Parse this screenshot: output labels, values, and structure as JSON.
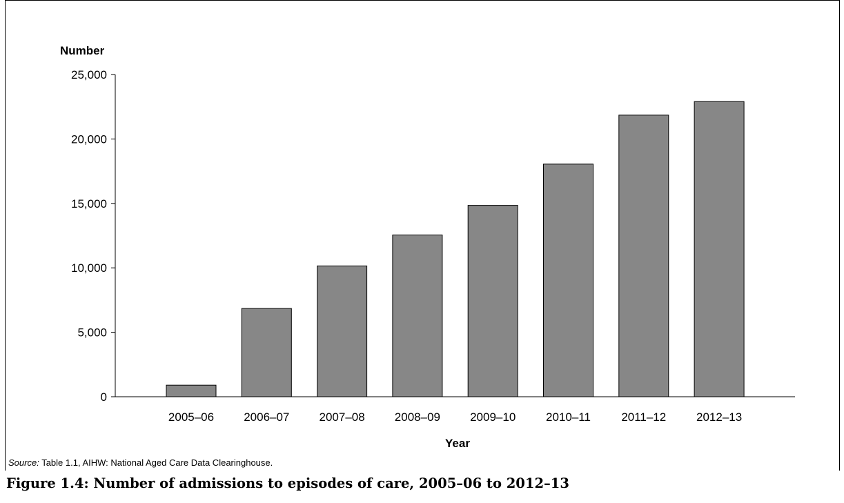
{
  "chart_data": {
    "type": "bar",
    "categories": [
      "2005–06",
      "2006–07",
      "2007–08",
      "2008–09",
      "2009–10",
      "2010–11",
      "2011–12",
      "2012–13"
    ],
    "values": [
      900,
      6850,
      10150,
      12550,
      14850,
      18050,
      21850,
      22900
    ],
    "ylim": [
      0,
      25000
    ],
    "y_ticks": [
      0,
      5000,
      10000,
      15000,
      20000,
      25000
    ],
    "y_tick_labels": [
      "0",
      "5,000",
      "10,000",
      "15,000",
      "20,000",
      "25,000"
    ],
    "ylabel": "Number",
    "xlabel": "Year",
    "grid": false,
    "bar_color": "#878787",
    "bar_edge_color": "#000000"
  },
  "source": {
    "prefix": "Source:",
    "text": " Table 1.1, AIHW: National Aged Care Data Clearinghouse."
  },
  "caption": "Figure 1.4: Number of admissions to episodes of care, 2005–06 to 2012–13"
}
